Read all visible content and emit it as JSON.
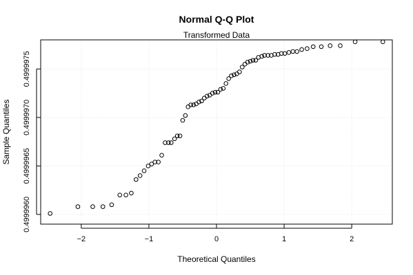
{
  "chart_data": {
    "type": "scatter",
    "title": "Normal Q-Q Plot",
    "subtitle": "Transformed Data",
    "xlabel": "Theoretical Quantiles",
    "ylabel": "Sample Quantiles",
    "xlim": [
      -2.6,
      2.6
    ],
    "ylim": [
      0.4999959,
      0.4999978
    ],
    "x_ticks": [
      -2,
      -1,
      0,
      1,
      2
    ],
    "x_tick_labels": [
      "−2",
      "−1",
      "0",
      "1",
      "2"
    ],
    "y_ticks": [
      0.499996,
      0.4999965,
      0.499997,
      0.4999975
    ],
    "y_tick_labels": [
      "0.4999960",
      "0.4999965",
      "0.4999970",
      "0.4999975"
    ],
    "grid": true,
    "marker": "open-circle",
    "points": [
      {
        "x": -2.46,
        "y": 0.49999601
      },
      {
        "x": -2.05,
        "y": 0.49999608
      },
      {
        "x": -1.83,
        "y": 0.49999608
      },
      {
        "x": -1.68,
        "y": 0.49999608
      },
      {
        "x": -1.55,
        "y": 0.4999961
      },
      {
        "x": -1.43,
        "y": 0.4999962
      },
      {
        "x": -1.34,
        "y": 0.4999962
      },
      {
        "x": -1.26,
        "y": 0.49999622
      },
      {
        "x": -1.19,
        "y": 0.49999636
      },
      {
        "x": -1.13,
        "y": 0.4999964
      },
      {
        "x": -1.07,
        "y": 0.49999645
      },
      {
        "x": -1.01,
        "y": 0.4999965
      },
      {
        "x": -0.96,
        "y": 0.49999652
      },
      {
        "x": -0.91,
        "y": 0.49999654
      },
      {
        "x": -0.86,
        "y": 0.49999654
      },
      {
        "x": -0.81,
        "y": 0.49999661
      },
      {
        "x": -0.76,
        "y": 0.49999674
      },
      {
        "x": -0.71,
        "y": 0.49999674
      },
      {
        "x": -0.67,
        "y": 0.49999674
      },
      {
        "x": -0.62,
        "y": 0.49999678
      },
      {
        "x": -0.58,
        "y": 0.49999681
      },
      {
        "x": -0.54,
        "y": 0.49999681
      },
      {
        "x": -0.5,
        "y": 0.49999697
      },
      {
        "x": -0.46,
        "y": 0.49999702
      },
      {
        "x": -0.42,
        "y": 0.49999711
      },
      {
        "x": -0.38,
        "y": 0.49999713
      },
      {
        "x": -0.34,
        "y": 0.49999713
      },
      {
        "x": -0.3,
        "y": 0.49999714
      },
      {
        "x": -0.26,
        "y": 0.49999716
      },
      {
        "x": -0.22,
        "y": 0.49999717
      },
      {
        "x": -0.18,
        "y": 0.4999972
      },
      {
        "x": -0.14,
        "y": 0.49999722
      },
      {
        "x": -0.1,
        "y": 0.49999723
      },
      {
        "x": -0.06,
        "y": 0.49999725
      },
      {
        "x": -0.02,
        "y": 0.49999726
      },
      {
        "x": 0.02,
        "y": 0.49999726
      },
      {
        "x": 0.06,
        "y": 0.49999729
      },
      {
        "x": 0.1,
        "y": 0.4999973
      },
      {
        "x": 0.14,
        "y": 0.49999735
      },
      {
        "x": 0.18,
        "y": 0.4999974
      },
      {
        "x": 0.22,
        "y": 0.49999743
      },
      {
        "x": 0.26,
        "y": 0.49999744
      },
      {
        "x": 0.3,
        "y": 0.49999745
      },
      {
        "x": 0.34,
        "y": 0.49999747
      },
      {
        "x": 0.38,
        "y": 0.49999752
      },
      {
        "x": 0.42,
        "y": 0.49999755
      },
      {
        "x": 0.46,
        "y": 0.49999757
      },
      {
        "x": 0.5,
        "y": 0.49999758
      },
      {
        "x": 0.54,
        "y": 0.49999759
      },
      {
        "x": 0.58,
        "y": 0.49999759
      },
      {
        "x": 0.62,
        "y": 0.49999762
      },
      {
        "x": 0.67,
        "y": 0.49999763
      },
      {
        "x": 0.71,
        "y": 0.49999764
      },
      {
        "x": 0.76,
        "y": 0.49999764
      },
      {
        "x": 0.81,
        "y": 0.49999764
      },
      {
        "x": 0.86,
        "y": 0.49999765
      },
      {
        "x": 0.91,
        "y": 0.49999765
      },
      {
        "x": 0.96,
        "y": 0.49999766
      },
      {
        "x": 1.01,
        "y": 0.49999766
      },
      {
        "x": 1.07,
        "y": 0.49999767
      },
      {
        "x": 1.13,
        "y": 0.49999768
      },
      {
        "x": 1.19,
        "y": 0.49999768
      },
      {
        "x": 1.26,
        "y": 0.4999977
      },
      {
        "x": 1.34,
        "y": 0.49999771
      },
      {
        "x": 1.43,
        "y": 0.49999773
      },
      {
        "x": 1.55,
        "y": 0.49999773
      },
      {
        "x": 1.68,
        "y": 0.49999774
      },
      {
        "x": 1.83,
        "y": 0.49999774
      },
      {
        "x": 2.05,
        "y": 0.49999778
      },
      {
        "x": 2.46,
        "y": 0.49999778
      }
    ]
  }
}
